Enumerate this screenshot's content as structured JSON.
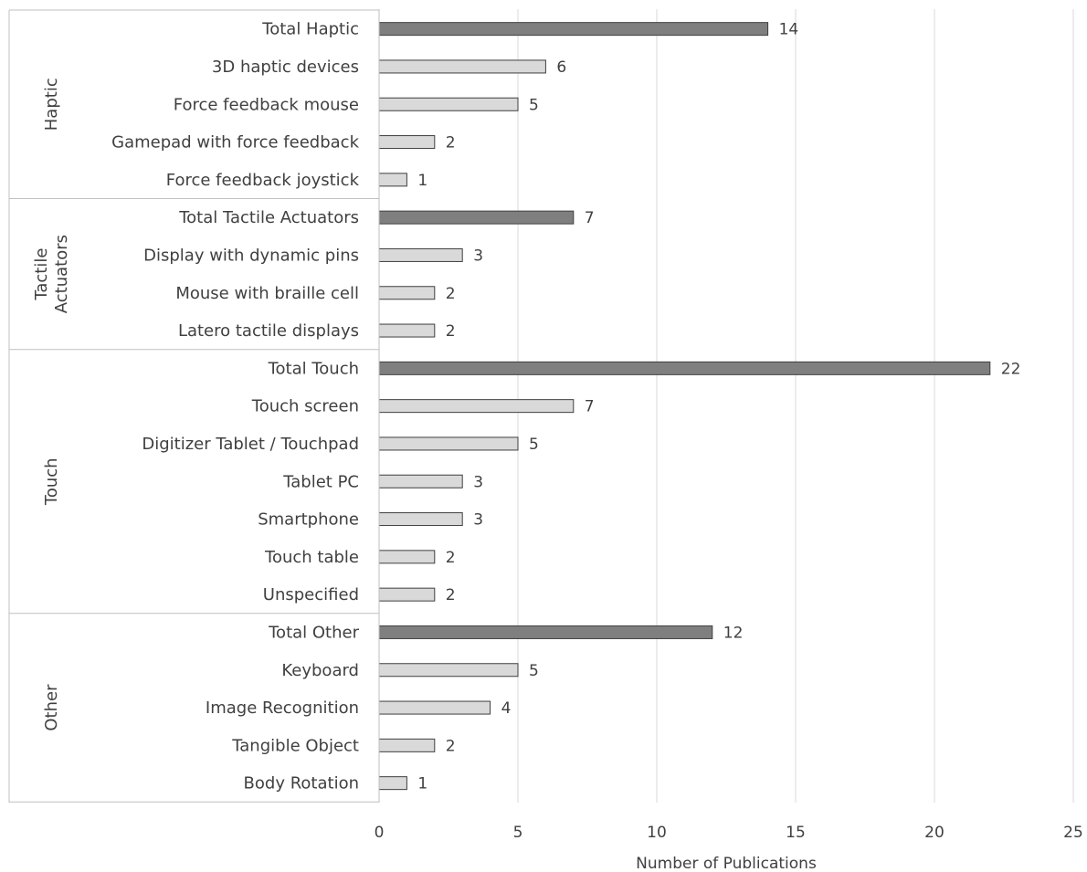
{
  "chart_data": {
    "type": "bar",
    "orientation": "horizontal",
    "title": "",
    "xlabel": "Number of Publications",
    "ylabel": "",
    "xlim": [
      0,
      25
    ],
    "xticks": [
      "0",
      "5",
      "10",
      "15",
      "20",
      "25"
    ],
    "grid": "vertical",
    "legend": "none",
    "groups": [
      {
        "name": "Haptic",
        "items": [
          {
            "label": "Total Haptic",
            "value": 14,
            "total": true
          },
          {
            "label": "3D haptic devices",
            "value": 6,
            "total": false
          },
          {
            "label": "Force feedback mouse",
            "value": 5,
            "total": false
          },
          {
            "label": "Gamepad with force feedback",
            "value": 2,
            "total": false
          },
          {
            "label": "Force feedback joystick",
            "value": 1,
            "total": false
          }
        ]
      },
      {
        "name": "Tactile Actuators",
        "name_lines": [
          "Tactile",
          "Actuators"
        ],
        "items": [
          {
            "label": "Total Tactile Actuators",
            "value": 7,
            "total": true
          },
          {
            "label": "Display with dynamic pins",
            "value": 3,
            "total": false
          },
          {
            "label": "Mouse with braille cell",
            "value": 2,
            "total": false
          },
          {
            "label": "Latero tactile displays",
            "value": 2,
            "total": false
          }
        ]
      },
      {
        "name": "Touch",
        "items": [
          {
            "label": "Total Touch",
            "value": 22,
            "total": true
          },
          {
            "label": "Touch screen",
            "value": 7,
            "total": false
          },
          {
            "label": "Digitizer Tablet / Touchpad",
            "value": 5,
            "total": false
          },
          {
            "label": "Tablet PC",
            "value": 3,
            "total": false
          },
          {
            "label": "Smartphone",
            "value": 3,
            "total": false
          },
          {
            "label": "Touch table",
            "value": 2,
            "total": false
          },
          {
            "label": "Unspecified",
            "value": 2,
            "total": false
          }
        ]
      },
      {
        "name": "Other",
        "items": [
          {
            "label": "Total Other",
            "value": 12,
            "total": true
          },
          {
            "label": "Keyboard",
            "value": 5,
            "total": false
          },
          {
            "label": "Image Recognition",
            "value": 4,
            "total": false
          },
          {
            "label": "Tangible Object",
            "value": 2,
            "total": false
          },
          {
            "label": "Body Rotation",
            "value": 1,
            "total": false
          }
        ]
      }
    ],
    "colors": {
      "total_fill": "#7f7f7f",
      "detail_fill": "#d9d9d9",
      "bar_stroke": "#3f3f3f",
      "grid": "#d9d9d9",
      "axis": "#bfbfbf",
      "text": "#404040"
    }
  }
}
